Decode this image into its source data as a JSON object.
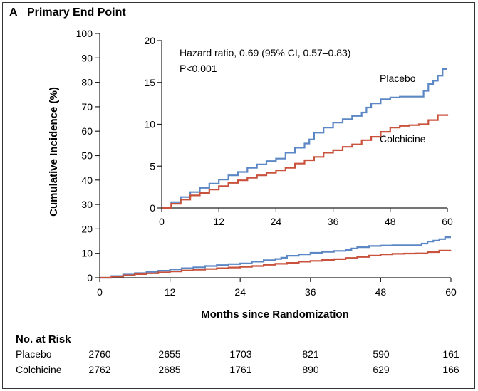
{
  "panel": {
    "letter": "A",
    "title": "Primary End Point"
  },
  "chart_data": {
    "type": "line",
    "title": "Primary End Point",
    "xlabel": "Months since Randomization",
    "ylabel": "Cumulative Incidence (%)",
    "xlim": [
      0,
      60
    ],
    "ylim": [
      0,
      100
    ],
    "xticks": [
      0,
      12,
      24,
      36,
      48,
      60
    ],
    "xtick_labels": [
      "0",
      "12",
      "24",
      "36",
      "48",
      "60"
    ],
    "yticks": [
      0,
      10,
      20,
      30,
      40,
      50,
      60,
      70,
      80,
      90,
      100
    ],
    "ytick_labels": [
      "0",
      "10",
      "20",
      "30",
      "40",
      "50",
      "60",
      "70",
      "80",
      "90",
      "100"
    ],
    "series": [
      {
        "name": "Placebo",
        "color": "#5b87c5",
        "x": [
          0,
          2,
          4,
          6,
          8,
          10,
          12,
          14,
          16,
          18,
          20,
          22,
          24,
          26,
          28,
          30,
          31,
          32,
          34,
          36,
          38,
          40,
          42,
          43,
          44,
          46,
          48,
          50,
          52,
          54,
          55,
          56,
          57,
          58,
          59,
          60
        ],
        "y": [
          0,
          0.7,
          1.3,
          1.9,
          2.4,
          2.9,
          3.4,
          3.9,
          4.3,
          4.8,
          5.2,
          5.6,
          5.9,
          6.6,
          7.2,
          7.7,
          8.2,
          9.0,
          9.6,
          10.2,
          10.6,
          11.0,
          11.4,
          12.0,
          12.5,
          13.0,
          13.2,
          13.3,
          13.3,
          13.3,
          14.0,
          14.8,
          15.2,
          15.8,
          16.6,
          16.6
        ]
      },
      {
        "name": "Colchicine",
        "color": "#c9523c",
        "x": [
          0,
          2,
          4,
          6,
          8,
          10,
          12,
          14,
          16,
          18,
          20,
          22,
          24,
          26,
          28,
          30,
          32,
          34,
          36,
          38,
          40,
          42,
          44,
          46,
          48,
          50,
          52,
          54,
          56,
          58,
          60
        ],
        "y": [
          0,
          0.5,
          1.0,
          1.5,
          1.8,
          2.2,
          2.6,
          3.0,
          3.3,
          3.6,
          3.9,
          4.2,
          4.5,
          4.8,
          5.3,
          5.7,
          6.1,
          6.6,
          6.9,
          7.3,
          7.6,
          8.1,
          8.5,
          9.1,
          9.6,
          9.8,
          9.9,
          10.0,
          10.5,
          11.1,
          11.2
        ]
      }
    ],
    "inset": {
      "xlim": [
        0,
        60
      ],
      "ylim": [
        0,
        20
      ],
      "xticks": [
        0,
        12,
        24,
        36,
        48,
        60
      ],
      "xtick_labels": [
        "0",
        "12",
        "24",
        "36",
        "48",
        "60"
      ],
      "yticks": [
        0,
        5,
        10,
        15,
        20
      ],
      "ytick_labels": [
        "0",
        "5",
        "10",
        "15",
        "20"
      ],
      "annotation_lines": [
        "Hazard ratio, 0.69 (95% CI, 0.57–0.83)",
        "P<0.001"
      ],
      "series_labels": [
        "Placebo",
        "Colchicine"
      ]
    },
    "number_at_risk": {
      "header": "No. at Risk",
      "rows": [
        {
          "label": "Placebo",
          "values": [
            "2760",
            "2655",
            "1703",
            "821",
            "590",
            "161"
          ]
        },
        {
          "label": "Colchicine",
          "values": [
            "2762",
            "2685",
            "1761",
            "890",
            "629",
            "166"
          ]
        }
      ]
    }
  }
}
